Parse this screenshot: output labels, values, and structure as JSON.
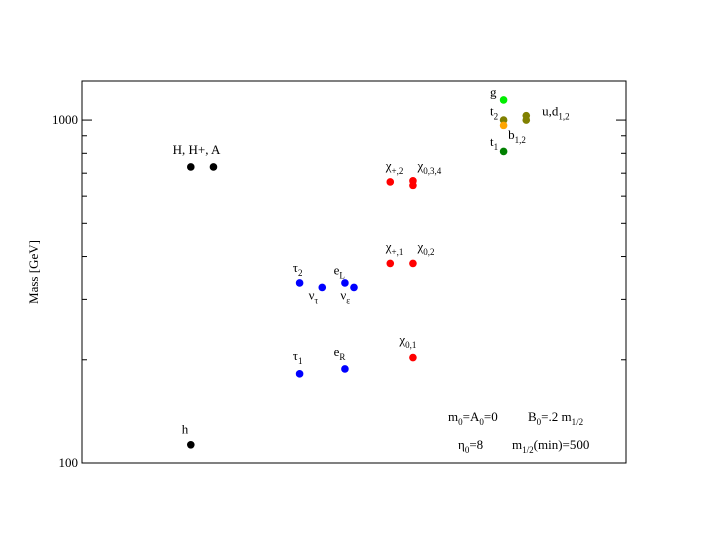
{
  "chart_data": {
    "type": "scatter",
    "title": "",
    "xlabel": "",
    "ylabel": "Mass [GeV]",
    "yscale": "log",
    "ylim": [
      100,
      1300
    ],
    "xlim": [
      0,
      12
    ],
    "y_tick_labels": [
      "100",
      "1000"
    ],
    "grid": false,
    "annotations": [
      {
        "text": "m",
        "sub": "0",
        "text2": "=A",
        "sub2": "0",
        "text3": "=0"
      },
      {
        "text": "B",
        "sub": "0",
        "text2": "=.2 m",
        "sub2": "1/2",
        "text3": ""
      },
      {
        "text": "η",
        "sub": "0",
        "text2": "=8",
        "sub2": "",
        "text3": ""
      },
      {
        "text": "m",
        "sub": "1/2",
        "text2": "(min)=500",
        "sub2": "",
        "text3": ""
      }
    ],
    "groups": [
      {
        "color": "#000000",
        "points": [
          {
            "x": 2.4,
            "y": 113
          },
          {
            "x": 2.4,
            "y": 730
          },
          {
            "x": 2.9,
            "y": 730
          }
        ],
        "labels": [
          {
            "text": "h",
            "sub": "",
            "x": 2.2,
            "y": 122
          },
          {
            "text": "H, H+, A",
            "sub": "",
            "x": 2.0,
            "y": 795
          }
        ]
      },
      {
        "color": "#0000ff",
        "points": [
          {
            "x": 4.8,
            "y": 182
          },
          {
            "x": 4.8,
            "y": 335
          },
          {
            "x": 5.3,
            "y": 325
          },
          {
            "x": 5.8,
            "y": 188
          },
          {
            "x": 5.8,
            "y": 335
          },
          {
            "x": 6.0,
            "y": 325
          }
        ],
        "labels": [
          {
            "text": "τ",
            "sub": "1",
            "x": 4.65,
            "y": 200
          },
          {
            "text": "τ",
            "sub": "2",
            "x": 4.65,
            "y": 360
          },
          {
            "text": "ν",
            "sub": "τ",
            "x": 5.0,
            "y": 300
          },
          {
            "text": "e",
            "sub": "R",
            "x": 5.55,
            "y": 205
          },
          {
            "text": "e",
            "sub": "L",
            "x": 5.55,
            "y": 355
          },
          {
            "text": "ν",
            "sub": "ε",
            "x": 5.7,
            "y": 300
          }
        ]
      },
      {
        "color": "#ff0000",
        "points": [
          {
            "x": 7.3,
            "y": 203
          },
          {
            "x": 6.8,
            "y": 382
          },
          {
            "x": 7.3,
            "y": 382
          },
          {
            "x": 6.8,
            "y": 660
          },
          {
            "x": 7.3,
            "y": 665
          },
          {
            "x": 7.3,
            "y": 645
          }
        ],
        "labels": [
          {
            "text": "χ",
            "sub": "0,1",
            "x": 7.0,
            "y": 222
          },
          {
            "text": "χ",
            "sub": "+,1",
            "x": 6.7,
            "y": 415
          },
          {
            "text": "χ",
            "sub": "0,2",
            "x": 7.4,
            "y": 415
          },
          {
            "text": "χ",
            "sub": "+,2",
            "x": 6.7,
            "y": 715
          },
          {
            "text": "χ",
            "sub": "0,3,4",
            "x": 7.4,
            "y": 715
          }
        ]
      },
      {
        "color": "#00ee00",
        "points": [
          {
            "x": 9.3,
            "y": 1145
          }
        ],
        "labels": [
          {
            "text": "g",
            "sub": "",
            "x": 9.0,
            "y": 1170
          }
        ]
      },
      {
        "color": "#808000",
        "points": [
          {
            "x": 9.3,
            "y": 1000
          },
          {
            "x": 9.8,
            "y": 1030
          },
          {
            "x": 9.8,
            "y": 1000
          }
        ],
        "labels": [
          {
            "text": "t",
            "sub": "2",
            "x": 9.0,
            "y": 1030
          },
          {
            "text": "u,d",
            "sub": "1,2",
            "x": 10.15,
            "y": 1030
          }
        ]
      },
      {
        "color": "#ffa500",
        "points": [
          {
            "x": 9.3,
            "y": 965
          }
        ],
        "labels": [
          {
            "text": "b",
            "sub": "1,2",
            "x": 9.4,
            "y": 880
          }
        ]
      },
      {
        "color": "#008000",
        "points": [
          {
            "x": 9.3,
            "y": 810
          }
        ],
        "labels": [
          {
            "text": "t",
            "sub": "1",
            "x": 9.0,
            "y": 840
          }
        ]
      }
    ]
  }
}
